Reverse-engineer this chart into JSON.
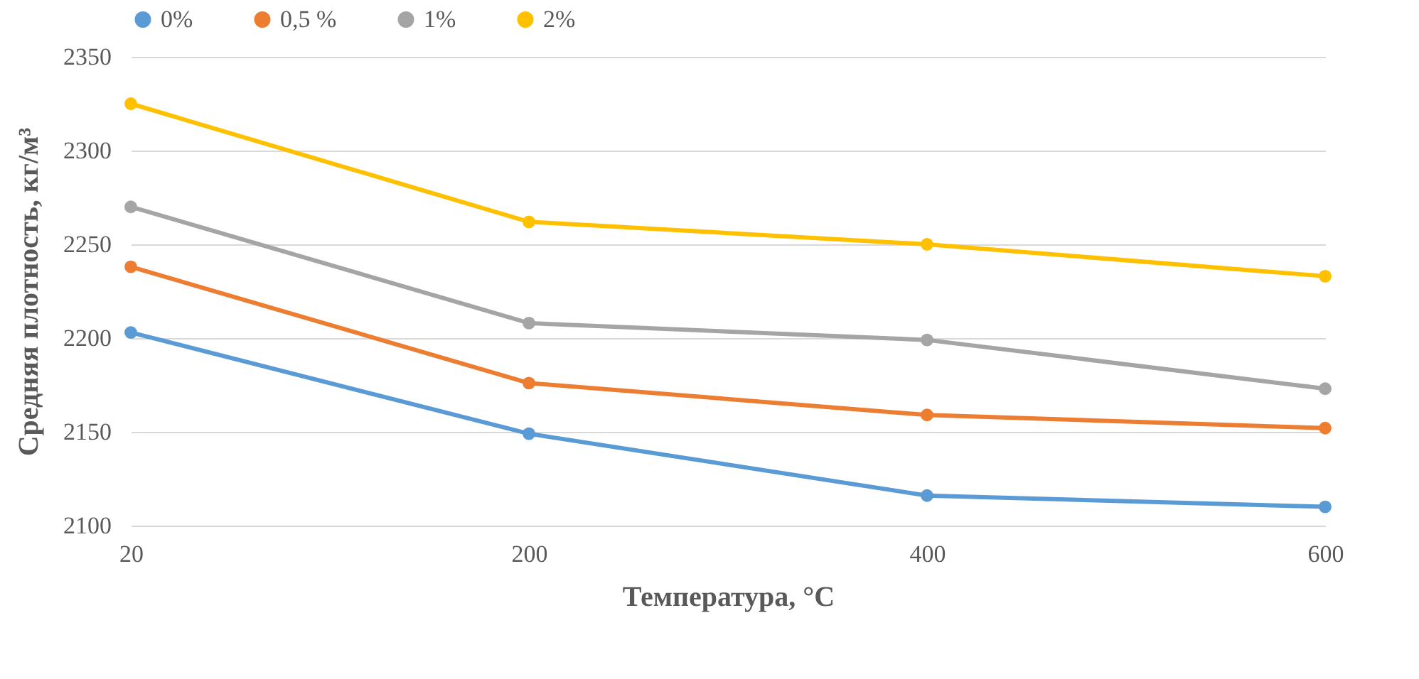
{
  "chart_data": {
    "type": "line",
    "xlabel": "Температура, °C",
    "ylabel": "Средняя плотность, кг/м³",
    "categories": [
      "20",
      "200",
      "400",
      "600"
    ],
    "series": [
      {
        "name": "0%",
        "color": "#5b9bd5",
        "values": [
          2203,
          2149,
          2116,
          2110
        ]
      },
      {
        "name": "0,5 %",
        "color": "#ed7d31",
        "values": [
          2238,
          2176,
          2159,
          2152
        ]
      },
      {
        "name": "1%",
        "color": "#a5a5a5",
        "values": [
          2270,
          2208,
          2199,
          2173
        ]
      },
      {
        "name": "2%",
        "color": "#ffc000",
        "values": [
          2325,
          2262,
          2250,
          2233
        ]
      }
    ],
    "ylim": [
      2100,
      2350
    ],
    "yticks": [
      2100,
      2150,
      2200,
      2250,
      2300,
      2350
    ],
    "grid": "y",
    "legend": "top",
    "marker": "circle",
    "line_style": "solid"
  }
}
